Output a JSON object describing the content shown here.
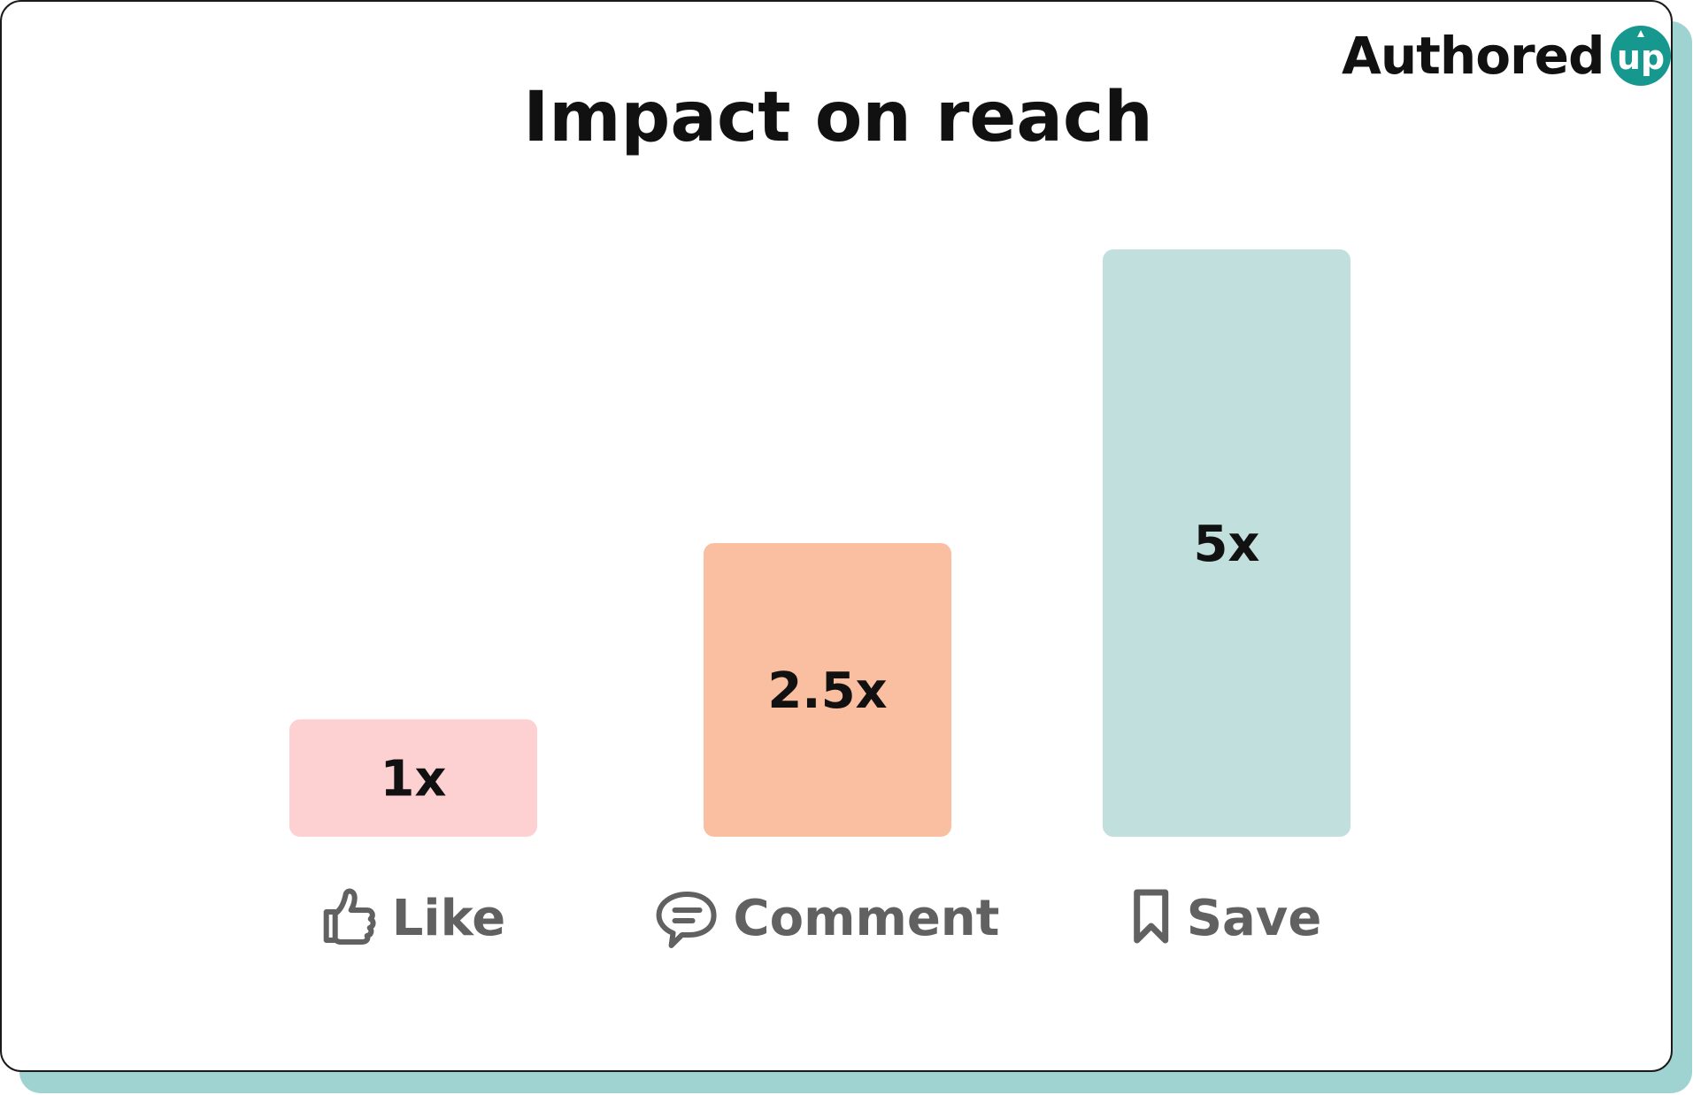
{
  "brand": {
    "name": "Authored",
    "badge": "up",
    "badge_color": "#17988f"
  },
  "chart_data": {
    "type": "bar",
    "title": "Impact on reach",
    "xlabel": "",
    "ylabel": "",
    "ylim": [
      0,
      5
    ],
    "grid": false,
    "legend": "none",
    "categories": [
      "Like",
      "Comment",
      "Save"
    ],
    "category_icons": [
      "thumbs-up-icon",
      "comment-icon",
      "bookmark-icon"
    ],
    "values": [
      1,
      2.5,
      5
    ],
    "value_labels": [
      "1x",
      "2.5x",
      "5x"
    ],
    "colors": [
      "#fdd1d1",
      "#f9bfa0",
      "#c0dfdd"
    ]
  }
}
